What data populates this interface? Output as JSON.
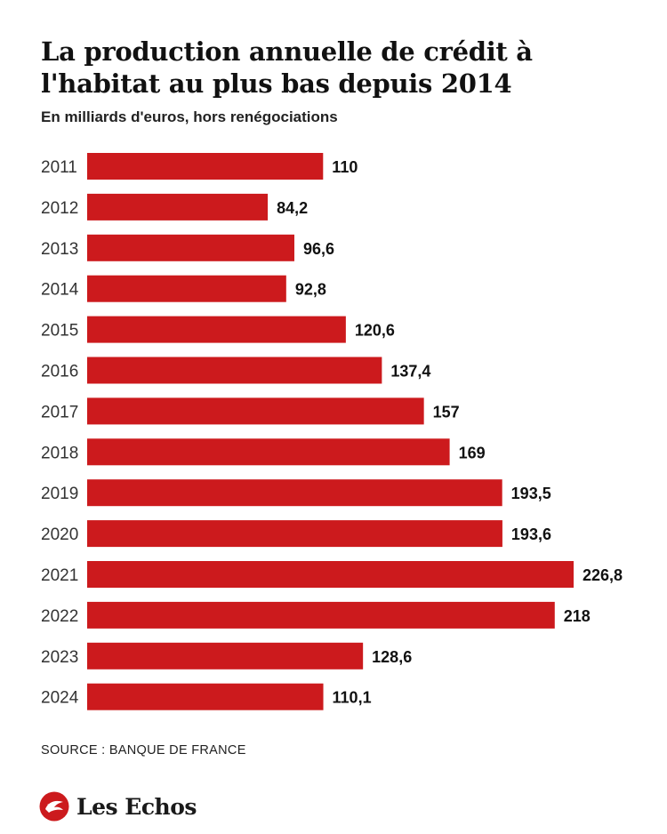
{
  "header": {
    "title": "La production annuelle de crédit à l'habitat au plus bas depuis 2014",
    "subtitle": "En milliards d'euros, hors renégociations"
  },
  "chart_data": {
    "type": "bar",
    "orientation": "horizontal",
    "title": "La production annuelle de crédit à l'habitat au plus bas depuis 2014",
    "subtitle": "En milliards d'euros, hors renégociations",
    "xlabel": "",
    "ylabel": "",
    "categories": [
      "2011",
      "2012",
      "2013",
      "2014",
      "2015",
      "2016",
      "2017",
      "2018",
      "2019",
      "2020",
      "2021",
      "2022",
      "2023",
      "2024"
    ],
    "values": [
      110,
      84.2,
      96.6,
      92.8,
      120.6,
      137.4,
      157,
      169,
      193.5,
      193.6,
      226.8,
      218,
      128.6,
      110.1
    ],
    "value_labels": [
      "110",
      "84,2",
      "96,6",
      "92,8",
      "120,6",
      "137,4",
      "157",
      "169",
      "193,5",
      "193,6",
      "226,8",
      "218",
      "128,6",
      "110,1"
    ],
    "xlim": [
      0,
      226.8
    ],
    "bar_color": "#cc1a1d",
    "grid": false,
    "legend": "none"
  },
  "footer": {
    "source": "SOURCE : BANQUE DE FRANCE",
    "brand": "Les Echos",
    "brand_color": "#cc1a1d"
  }
}
